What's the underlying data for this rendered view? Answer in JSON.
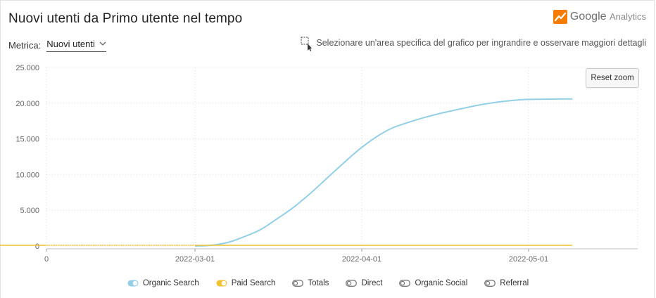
{
  "header": {
    "title": "Nuovi utenti da Primo utente nel tempo",
    "brand_name": "Google",
    "brand_sub": "Analytics"
  },
  "metric": {
    "label": "Metrica:",
    "value": "Nuovi utenti"
  },
  "hint": {
    "text": "Selezionare un'area specifica del grafico per ingrandire e osservare maggiori dettagli",
    "icon": "zoom-select-icon"
  },
  "reset_zoom": {
    "label": "Reset zoom"
  },
  "colors": {
    "organic_search": "#93cfe6",
    "paid_search": "#f1c232",
    "inactive": "#777777",
    "logo_orange": "#f57c00"
  },
  "legend": [
    {
      "name": "Organic Search",
      "active": true,
      "color": "#93cfe6"
    },
    {
      "name": "Paid Search",
      "active": true,
      "color": "#f1c232"
    },
    {
      "name": "Totals",
      "active": false
    },
    {
      "name": "Direct",
      "active": false
    },
    {
      "name": "Organic Social",
      "active": false
    },
    {
      "name": "Referral",
      "active": false
    }
  ],
  "chart_data": {
    "type": "line",
    "x_ticks": [
      "0",
      "2022-03-01",
      "2022-04-01",
      "2022-05-01"
    ],
    "y_ticks": [
      "0",
      "5.000",
      "10.000",
      "15.000",
      "20.000",
      "25.000"
    ],
    "ylim": [
      0,
      25000
    ],
    "grid": true,
    "legend_position": "bottom",
    "series": [
      {
        "name": "Organic Search",
        "points": [
          [
            "2022-03-01",
            0
          ],
          [
            "2022-03-04",
            100
          ],
          [
            "2022-03-07",
            500
          ],
          [
            "2022-03-10",
            1300
          ],
          [
            "2022-03-13",
            2300
          ],
          [
            "2022-03-16",
            3800
          ],
          [
            "2022-03-19",
            5400
          ],
          [
            "2022-03-22",
            7300
          ],
          [
            "2022-03-25",
            9400
          ],
          [
            "2022-03-28",
            11500
          ],
          [
            "2022-03-31",
            13500
          ],
          [
            "2022-04-03",
            15200
          ],
          [
            "2022-04-06",
            16500
          ],
          [
            "2022-04-09",
            17300
          ],
          [
            "2022-04-12",
            18000
          ],
          [
            "2022-04-15",
            18600
          ],
          [
            "2022-04-18",
            19100
          ],
          [
            "2022-04-21",
            19600
          ],
          [
            "2022-04-24",
            20000
          ],
          [
            "2022-04-27",
            20300
          ],
          [
            "2022-04-30",
            20500
          ],
          [
            "2022-05-03",
            20550
          ],
          [
            "2022-05-06",
            20580
          ],
          [
            "2022-05-09",
            20600
          ]
        ]
      },
      {
        "name": "Paid Search",
        "points": [
          [
            "2021-12-28",
            100
          ],
          [
            "2022-03-01",
            100
          ],
          [
            "2022-04-01",
            100
          ],
          [
            "2022-05-09",
            100
          ]
        ]
      }
    ]
  }
}
